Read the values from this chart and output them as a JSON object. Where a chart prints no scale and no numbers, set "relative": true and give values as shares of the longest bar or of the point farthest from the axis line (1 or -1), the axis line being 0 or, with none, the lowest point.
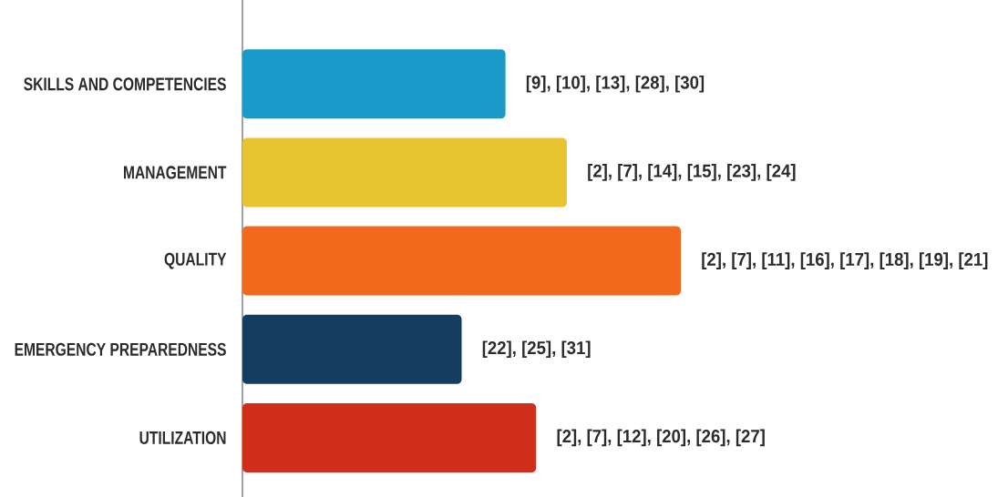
{
  "chart_data": {
    "type": "bar",
    "orientation": "horizontal",
    "relative": true,
    "categories": [
      "SKILLS AND COMPETENCIES",
      "MANAGEMENT",
      "QUALITY",
      "EMERGENCY PREPAREDNESS",
      "UTILIZATION"
    ],
    "values": [
      0.6,
      0.74,
      1,
      0.5,
      0.67
    ],
    "colors": [
      "#1a9ac8",
      "#e8c530",
      "#f2691e",
      "#143d5f",
      "#d02d1b"
    ],
    "annotations": [
      {
        "text": "[9], [10], [13], [28], [30]",
        "x": 0.6,
        "y": "SKILLS AND COMPETENCIES"
      },
      {
        "text": "[2], [7], [14], [15], [23], [24]",
        "x": 0.74,
        "y": "MANAGEMENT"
      },
      {
        "text": "[2], [7], [11], [16], [17], [18], [19], [21]",
        "x": 1,
        "y": "QUALITY"
      },
      {
        "text": "[22], [25], [31]",
        "x": 0.5,
        "y": "EMERGENCY PREPAREDNESS"
      },
      {
        "text": "[2], [7], [12], [20], [26], [27]",
        "x": 0.67,
        "y": "UTILIZATION"
      }
    ]
  }
}
